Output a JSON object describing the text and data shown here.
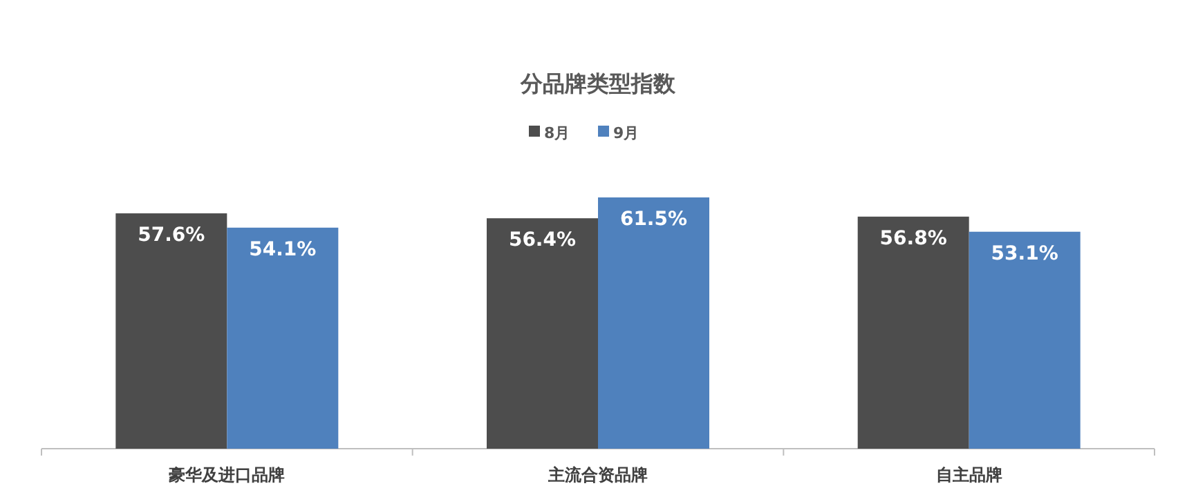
{
  "chart_data": {
    "type": "bar",
    "title": "分品牌类型指数",
    "categories": [
      "豪华及进口品牌",
      "主流合资品牌",
      "自主品牌"
    ],
    "series": [
      {
        "name": "8月",
        "color": "#4d4d4d",
        "values": [
          57.6,
          56.4,
          56.8
        ],
        "value_labels": [
          "57.6%",
          "56.4%",
          "56.8%"
        ]
      },
      {
        "name": "9月",
        "color": "#4f81bd",
        "values": [
          54.1,
          61.5,
          53.1
        ],
        "value_labels": [
          "54.1%",
          "61.5%",
          "53.1%"
        ]
      }
    ],
    "legend": "top"
  }
}
